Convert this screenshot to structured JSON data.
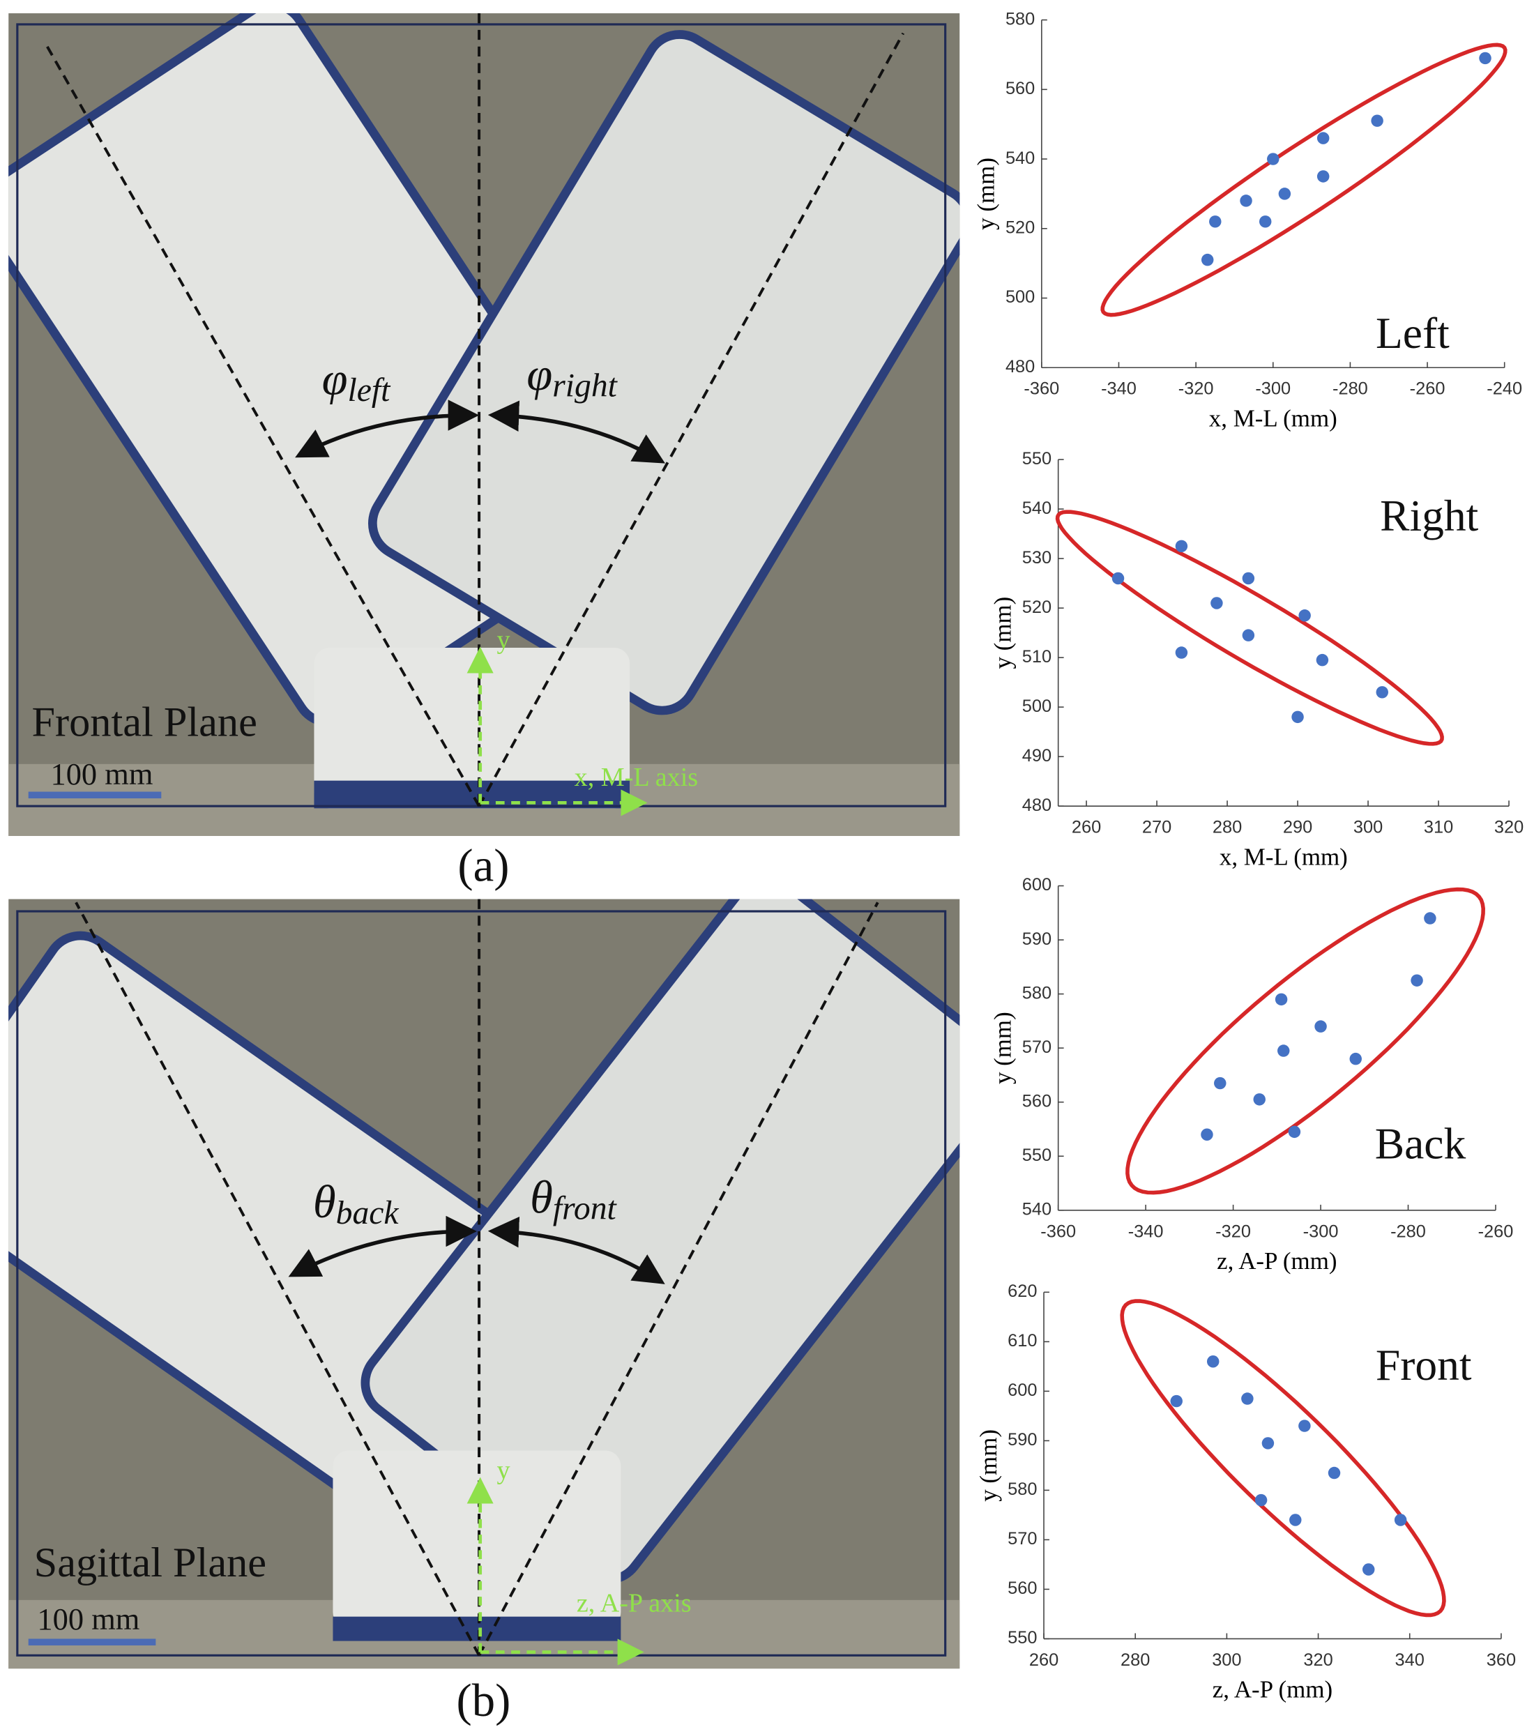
{
  "photos": [
    {
      "label": "(a)",
      "plane": "Frontal Plane",
      "scale_bar": "100 mm",
      "axis_h": "x, M-L axis",
      "axis_v": "y",
      "angles": [
        {
          "symbol": "φ",
          "subscript": "left"
        },
        {
          "symbol": "φ",
          "subscript": "right"
        }
      ]
    },
    {
      "label": "(b)",
      "plane": "Sagittal Plane",
      "scale_bar": "100 mm",
      "axis_h": "z, A-P axis",
      "axis_v": "y",
      "angles": [
        {
          "symbol": "θ",
          "subscript": "back"
        },
        {
          "symbol": "θ",
          "subscript": "front"
        }
      ]
    }
  ],
  "chart_data": [
    {
      "type": "scatter",
      "label": "Left",
      "xlabel": "x, M-L (mm)",
      "ylabel": "y (mm)",
      "color": "#4472c4",
      "ellipse_color": "#d62728",
      "x": [
        -245,
        -273,
        -287,
        -287,
        -300,
        -297,
        -307,
        -302,
        -315,
        -317
      ],
      "values": [
        569,
        551,
        546,
        535,
        540,
        530,
        528,
        522,
        522,
        511
      ],
      "ellipse": {
        "center": [
          -292,
          534
        ],
        "a": [
          52,
          38
        ],
        "b": [
          4.8,
          -8
        ]
      },
      "xlim": [
        -360,
        -240
      ],
      "xticks": [
        -360,
        -340,
        -320,
        -300,
        -280,
        -260,
        -240
      ],
      "ylim": [
        480,
        580
      ],
      "yticks": [
        480,
        500,
        520,
        540,
        560,
        580
      ]
    },
    {
      "type": "scatter",
      "label": "Right",
      "xlabel": "x, M-L (mm)",
      "ylabel": "y (mm)",
      "color": "#4472c4",
      "ellipse_color": "#d62728",
      "x": [
        264.5,
        273.5,
        283,
        278.5,
        283,
        273.5,
        291,
        293.5,
        302,
        290
      ],
      "values": [
        526,
        532.5,
        526,
        521,
        514.5,
        511,
        518.5,
        509.5,
        503,
        498
      ],
      "ellipse": {
        "center": [
          283.2,
          516
        ],
        "a": [
          27,
          -20.8
        ],
        "b": [
          -4.1,
          10.8
        ]
      },
      "xlim": [
        256,
        320
      ],
      "xticks": [
        260,
        270,
        280,
        290,
        300,
        310,
        320
      ],
      "ylim": [
        480,
        550
      ],
      "yticks": [
        480,
        490,
        500,
        510,
        520,
        530,
        540,
        550
      ]
    },
    {
      "type": "scatter",
      "label": "Back",
      "xlabel": "z, A-P (mm)",
      "ylabel": "y (mm)",
      "color": "#4472c4",
      "ellipse_color": "#d62728",
      "x": [
        -275,
        -278,
        -309,
        -300,
        -308.5,
        -292,
        -323,
        -314,
        -306,
        -326
      ],
      "values": [
        594,
        582.5,
        579,
        574,
        569.5,
        568,
        563.5,
        560.5,
        554.5,
        554
      ],
      "ellipse": {
        "center": [
          -303.5,
          571.3
        ],
        "a": [
          39.7,
          26.7
        ],
        "b": [
          8.9,
          -8.6
        ]
      },
      "xlim": [
        -360,
        -260
      ],
      "xticks": [
        -360,
        -340,
        -320,
        -300,
        -280,
        -260
      ],
      "ylim": [
        540,
        600
      ],
      "yticks": [
        540,
        550,
        560,
        570,
        580,
        590,
        600
      ]
    },
    {
      "type": "scatter",
      "label": "Front",
      "xlabel": "z, A-P (mm)",
      "ylabel": "y (mm)",
      "color": "#4472c4",
      "ellipse_color": "#d62728",
      "x": [
        289,
        297,
        304.5,
        309,
        317,
        307.5,
        315,
        323.5,
        338,
        331
      ],
      "values": [
        598,
        606,
        598.5,
        589.5,
        593,
        578,
        574,
        583.5,
        574,
        564
      ],
      "ellipse": {
        "center": [
          312.3,
          586.5
        ],
        "a": [
          34.4,
          -30.9
        ],
        "b": [
          7.5,
          7.2
        ]
      },
      "xlim": [
        260,
        360
      ],
      "xticks": [
        260,
        280,
        300,
        320,
        340,
        360
      ],
      "ylim": [
        550,
        620
      ],
      "yticks": [
        550,
        560,
        570,
        580,
        590,
        600,
        610,
        620
      ]
    }
  ]
}
